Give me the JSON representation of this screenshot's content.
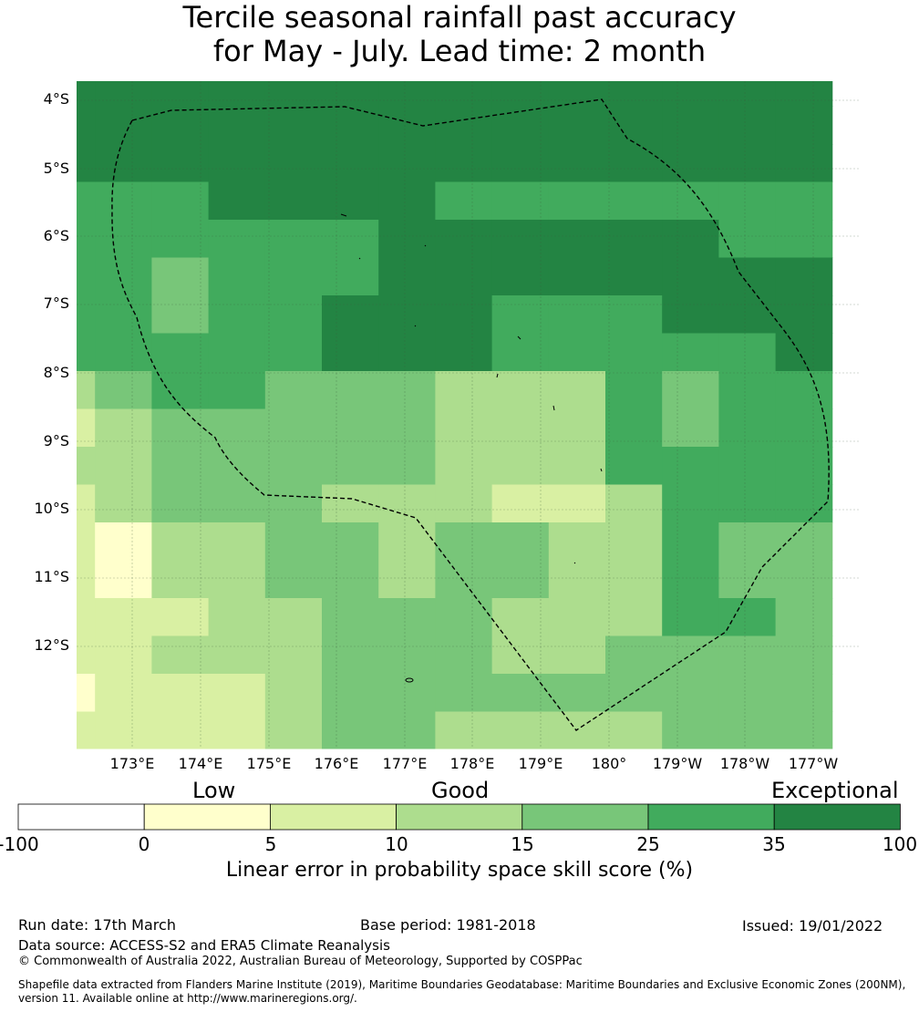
{
  "title": {
    "line1": "Tercile seasonal rainfall past accuracy",
    "line2": "for May - July. Lead time: 2 month"
  },
  "map": {
    "lat_labels": [
      "4°S",
      "5°S",
      "6°S",
      "7°S",
      "8°S",
      "9°S",
      "10°S",
      "11°S",
      "12°S"
    ],
    "lon_labels": [
      "173°E",
      "174°E",
      "175°E",
      "176°E",
      "177°E",
      "178°E",
      "179°E",
      "180°",
      "179°W",
      "178°W",
      "177°W"
    ],
    "legend_codes": {
      "0": "-100 to 0",
      "1": "0 to 5",
      "2": "5 to 10",
      "3": "10 to 15",
      "4": "15 to 25",
      "5": "25 to 35",
      "6": "35 to 100"
    },
    "grid_rows": [
      "66666666666666",
      "66666666666666",
      "66666666666666",
      "55566665555555",
      "55555566666655",
      "55455566666666",
      "55455666555666",
      "55555666555556",
      "34554443335455",
      "23444443335455",
      "33444443335555",
      "23444333223555",
      "21334434433544",
      "21334434433544",
      "22233444333554",
      "22333444334444",
      "12223444444444",
      "22223443333444",
      "22223433333344",
      "22223433333344",
      "22233332223333",
      "22233333334444",
      "22222333333333",
      "22222333333333",
      "33332223333333",
      "33333222333333",
      "33333333333333",
      "33333333333333",
      "33333433333333"
    ]
  },
  "colorbar": {
    "categories": [
      "Low",
      "Good",
      "Exceptional"
    ],
    "ticks": [
      "-100",
      "0",
      "5",
      "10",
      "15",
      "25",
      "35",
      "100"
    ],
    "colors": [
      "#ffffff",
      "#ffffcc",
      "#d9f0a3",
      "#addd8e",
      "#78c679",
      "#41ab5d",
      "#238443"
    ],
    "title": "Linear error in probability space skill score (%)"
  },
  "footer": {
    "run_date": "Run date: 17th March",
    "base_period": "Base period: 1981-2018",
    "issued": "Issued: 19/01/2022",
    "data_source": "Data source: ACCESS-S2 and ERA5 Climate Reanalysis",
    "copyright": "© Commonwealth of Australia 2022, Australian Bureau of Meteorology, Supported by COSPPac",
    "shapefile": "Shapefile data extracted from Flanders Marine Institute (2019), Maritime Boundaries Geodatabase: Maritime Boundaries and Exclusive Economic Zones (200NM), version 11. Available online at http://www.marineregions.org/."
  }
}
